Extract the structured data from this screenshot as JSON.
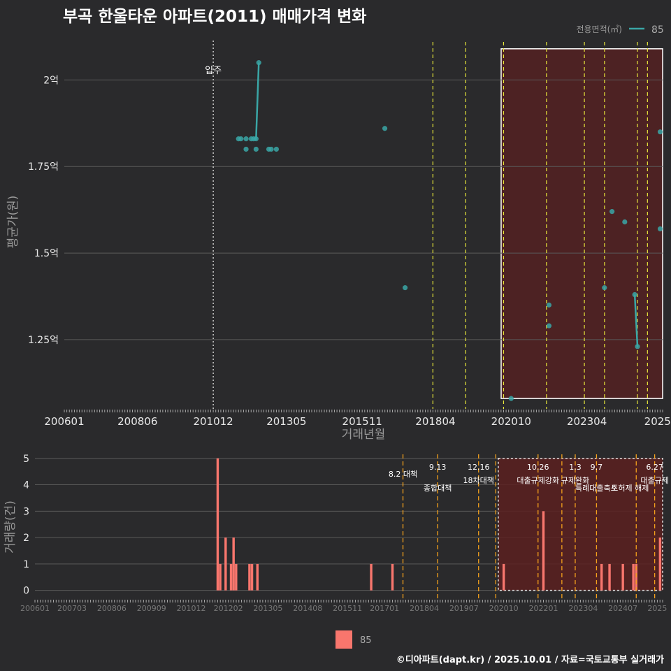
{
  "title": "부곡 한울타운 아파트(2011) 매매가격 변화",
  "footer": "©디아파트(dapt.kr) / 2025.10.01 / 자료=국토교통부 실거래가",
  "colors": {
    "background": "#2a2a2c",
    "price_series": "#3aa6a6",
    "volume_bar": "#f8766d",
    "policy_up": "#e8e83a",
    "policy_down": "#f4a11c",
    "highlight_fill": "#5a2020",
    "grid": "#5a5a5a",
    "movein": "#cccccc"
  },
  "chart_data": [
    {
      "type": "scatter",
      "title": "부곡 한울타운 아파트(2011) 매매가격 변화",
      "xlabel": "거래년월",
      "ylabel": "평균가(원)",
      "xlim": [
        2006.0,
        2025.75
      ],
      "ylim": [
        1.05,
        2.13
      ],
      "x_ticks": [
        {
          "label": "200601",
          "value": 2006.0
        },
        {
          "label": "200806",
          "value": 2008.417
        },
        {
          "label": "201012",
          "value": 2010.917
        },
        {
          "label": "201305",
          "value": 2013.333
        },
        {
          "label": "201511",
          "value": 2015.833
        },
        {
          "label": "201804",
          "value": 2018.25
        },
        {
          "label": "202010",
          "value": 2020.75
        },
        {
          "label": "202304",
          "value": 2023.25
        },
        {
          "label": "2025",
          "value": 2025.583
        }
      ],
      "y_ticks": [
        {
          "label": "1.25억",
          "value": 1.25
        },
        {
          "label": "1.5억",
          "value": 1.5
        },
        {
          "label": "1.75억",
          "value": 1.75
        },
        {
          "label": "2억",
          "value": 2.0
        }
      ],
      "legend": {
        "title": "전용면적(㎡)",
        "entries": [
          "85"
        ],
        "position": "top-right"
      },
      "movein": {
        "label": "입주",
        "x": 2010.917
      },
      "policy_lines": [
        2018.167,
        2019.25,
        2020.5,
        2021.917,
        2023.167,
        2023.833,
        2024.917,
        2025.25
      ],
      "highlight": {
        "x0": 2020.42,
        "x1": 2025.75,
        "y0": 1.08,
        "y1": 2.09
      },
      "series": [
        {
          "name": "85",
          "points": [
            {
              "x": 2011.75,
              "y": 1.83
            },
            {
              "x": 2011.83,
              "y": 1.83
            },
            {
              "x": 2012.0,
              "y": 1.83
            },
            {
              "x": 2012.0,
              "y": 1.8
            },
            {
              "x": 2012.17,
              "y": 1.83
            },
            {
              "x": 2012.25,
              "y": 1.83
            },
            {
              "x": 2012.33,
              "y": 1.8
            },
            {
              "x": 2012.33,
              "y": 1.83
            },
            {
              "x": 2012.42,
              "y": 2.05
            },
            {
              "x": 2012.75,
              "y": 1.8
            },
            {
              "x": 2012.83,
              "y": 1.8
            },
            {
              "x": 2013.0,
              "y": 1.8
            },
            {
              "x": 2016.58,
              "y": 1.86
            },
            {
              "x": 2017.25,
              "y": 1.4
            },
            {
              "x": 2020.75,
              "y": 1.08
            },
            {
              "x": 2022.0,
              "y": 1.35
            },
            {
              "x": 2022.0,
              "y": 1.29
            },
            {
              "x": 2023.83,
              "y": 1.4
            },
            {
              "x": 2024.08,
              "y": 1.62
            },
            {
              "x": 2024.5,
              "y": 1.59
            },
            {
              "x": 2024.83,
              "y": 1.38
            },
            {
              "x": 2024.92,
              "y": 1.23
            },
            {
              "x": 2025.67,
              "y": 1.85
            },
            {
              "x": 2025.67,
              "y": 1.57
            }
          ],
          "lines": [
            [
              {
                "x": 2012.25,
                "y": 1.83
              },
              {
                "x": 2012.33,
                "y": 1.83
              },
              {
                "x": 2012.42,
                "y": 2.05
              }
            ],
            [
              {
                "x": 2024.83,
                "y": 1.38
              },
              {
                "x": 2024.92,
                "y": 1.23
              }
            ]
          ]
        }
      ]
    },
    {
      "type": "bar",
      "xlabel": "",
      "ylabel": "거래량(건)",
      "xlim": [
        2006.0,
        2025.75
      ],
      "ylim": [
        -0.3,
        5.1
      ],
      "x_ticks": [
        {
          "label": "200601",
          "value": 2006.0
        },
        {
          "label": "200703",
          "value": 2007.167
        },
        {
          "label": "200806",
          "value": 2008.417
        },
        {
          "label": "200909",
          "value": 2009.667
        },
        {
          "label": "201012",
          "value": 2010.917
        },
        {
          "label": "201202",
          "value": 2012.083
        },
        {
          "label": "201305",
          "value": 2013.333
        },
        {
          "label": "201408",
          "value": 2014.583
        },
        {
          "label": "201511",
          "value": 2015.833
        },
        {
          "label": "201701",
          "value": 2017.0
        },
        {
          "label": "201804",
          "value": 2018.25
        },
        {
          "label": "201907",
          "value": 2019.5
        },
        {
          "label": "202010",
          "value": 2020.75
        },
        {
          "label": "202201",
          "value": 2022.0
        },
        {
          "label": "202304",
          "value": 2023.25
        },
        {
          "label": "202407",
          "value": 2024.5
        },
        {
          "label": "2025",
          "value": 2025.583
        }
      ],
      "y_ticks": [
        {
          "label": "0",
          "value": 0
        },
        {
          "label": "1",
          "value": 1
        },
        {
          "label": "2",
          "value": 2
        },
        {
          "label": "3",
          "value": 3
        },
        {
          "label": "4",
          "value": 4
        },
        {
          "label": "5",
          "value": 5
        }
      ],
      "legend": {
        "entries": [
          "85"
        ],
        "position": "bottom"
      },
      "highlight": {
        "x0": 2020.58,
        "x1": 2025.75,
        "y0": 0,
        "y1": 5
      },
      "bars": [
        {
          "x": 2011.75,
          "value": 5
        },
        {
          "x": 2011.83,
          "value": 1
        },
        {
          "x": 2012.0,
          "value": 2
        },
        {
          "x": 2012.17,
          "value": 1
        },
        {
          "x": 2012.25,
          "value": 2
        },
        {
          "x": 2012.33,
          "value": 1
        },
        {
          "x": 2012.75,
          "value": 1
        },
        {
          "x": 2012.83,
          "value": 1
        },
        {
          "x": 2013.0,
          "value": 1
        },
        {
          "x": 2016.58,
          "value": 1
        },
        {
          "x": 2017.25,
          "value": 1
        },
        {
          "x": 2020.75,
          "value": 1
        },
        {
          "x": 2022.0,
          "value": 3
        },
        {
          "x": 2023.83,
          "value": 1
        },
        {
          "x": 2024.08,
          "value": 1
        },
        {
          "x": 2024.5,
          "value": 1
        },
        {
          "x": 2024.83,
          "value": 1
        },
        {
          "x": 2024.92,
          "value": 1
        },
        {
          "x": 2025.67,
          "value": 2
        }
      ],
      "policies": [
        {
          "x": 2017.58,
          "date": "",
          "label": "8.2 대책",
          "row": 1
        },
        {
          "x": 2018.67,
          "date": "9.13",
          "label": "종합대책",
          "row": 2
        },
        {
          "x": 2019.96,
          "date": "12.16",
          "label": "18차대책",
          "row": 1
        },
        {
          "x": 2020.5,
          "date": "",
          "label": "",
          "row": 0
        },
        {
          "x": 2021.83,
          "date": "10.26",
          "label": "대출규제강화",
          "row": 1
        },
        {
          "x": 2022.58,
          "date": "",
          "label": "",
          "row": 0
        },
        {
          "x": 2023.0,
          "date": "1.3",
          "label": "규제완화",
          "row": 1
        },
        {
          "x": 2023.67,
          "date": "9.7",
          "label": "특례대출축소",
          "row": 2
        },
        {
          "x": 2024.92,
          "date": "",
          "label": "토허제 해제",
          "row": 2
        },
        {
          "x": 2025.5,
          "date": "6.27",
          "label": "대출규제",
          "row": 1
        }
      ]
    }
  ]
}
